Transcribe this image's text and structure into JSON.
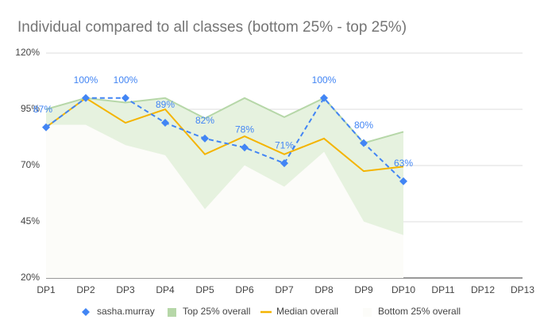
{
  "chart_data": {
    "type": "line",
    "title": "Individual compared to all classes (bottom 25% - top 25%)",
    "categories": [
      "DP1",
      "DP2",
      "DP3",
      "DP4",
      "DP5",
      "DP6",
      "DP7",
      "DP8",
      "DP9",
      "DP10",
      "DP11",
      "DP12",
      "DP13"
    ],
    "ylim": [
      20,
      120
    ],
    "yticks": [
      {
        "value": 20,
        "label": "20%"
      },
      {
        "value": 45,
        "label": "45%"
      },
      {
        "value": 70,
        "label": "70%"
      },
      {
        "value": 95,
        "label": "95%"
      },
      {
        "value": 120,
        "label": "120%"
      }
    ],
    "grid": true,
    "legend": "bottom",
    "series": [
      {
        "name": "sasha.murray",
        "color": "#4285f4",
        "kind": "dashed-line",
        "values": [
          87,
          100,
          100,
          89,
          82,
          78,
          71,
          100,
          80,
          63,
          null,
          null,
          null
        ],
        "value_labels": [
          "87%",
          "100%",
          "100%",
          "89%",
          "82%",
          "78%",
          "71%",
          "100%",
          "80%",
          "63%",
          null,
          null,
          null
        ]
      },
      {
        "name": "Top 25% overall",
        "color": "#b6d7a8",
        "kind": "area",
        "values": [
          95,
          100,
          98,
          100,
          91,
          100,
          91.5,
          100,
          80,
          85,
          null,
          null,
          null
        ]
      },
      {
        "name": "Median overall",
        "color": "#f4b400",
        "kind": "line",
        "values": [
          87,
          100,
          89,
          95,
          75,
          83,
          75,
          82,
          67.5,
          69.5,
          null,
          null,
          null
        ]
      },
      {
        "name": "Bottom 25% overall",
        "color": "#fcfcf9",
        "kind": "area",
        "values": [
          88,
          88,
          79,
          74.5,
          50.5,
          70,
          60.5,
          76,
          45,
          39,
          null,
          null,
          null
        ]
      }
    ]
  }
}
